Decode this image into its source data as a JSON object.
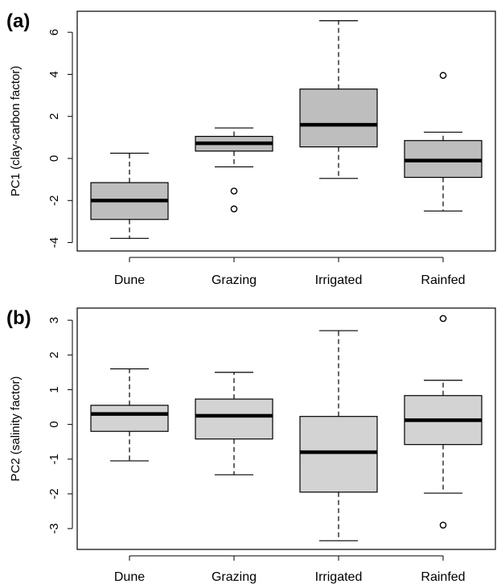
{
  "chart_data": [
    {
      "type": "box",
      "panel_label": "(a)",
      "title": "",
      "xlabel": "",
      "ylabel": "PC1 (clay-carbon factor)",
      "ylim": [
        -4.4,
        7.0
      ],
      "yticks": [
        -4,
        -2,
        0,
        2,
        4,
        6
      ],
      "categories": [
        "Dune",
        "Grazing",
        "Irrigated",
        "Rainfed"
      ],
      "box_color": "#bebebe",
      "boxes": [
        {
          "whisker_low": -3.8,
          "q1": -2.9,
          "median": -2.0,
          "q3": -1.15,
          "whisker_high": 0.25,
          "outliers": []
        },
        {
          "whisker_low": -0.4,
          "q1": 0.35,
          "median": 0.72,
          "q3": 1.05,
          "whisker_high": 1.45,
          "outliers": [
            -1.55,
            -2.4
          ]
        },
        {
          "whisker_low": -0.95,
          "q1": 0.55,
          "median": 1.6,
          "q3": 3.3,
          "whisker_high": 6.55,
          "outliers": []
        },
        {
          "whisker_low": -2.5,
          "q1": -0.9,
          "median": -0.1,
          "q3": 0.85,
          "whisker_high": 1.25,
          "outliers": [
            3.95
          ]
        }
      ]
    },
    {
      "type": "box",
      "panel_label": "(b)",
      "title": "",
      "xlabel": "",
      "ylabel": "PC2 (salinity factor)",
      "ylim": [
        -3.6,
        3.35
      ],
      "yticks": [
        -3,
        -2,
        -1,
        0,
        1,
        2,
        3
      ],
      "categories": [
        "Dune",
        "Grazing",
        "Irrigated",
        "Rainfed"
      ],
      "box_color": "#d3d3d3",
      "boxes": [
        {
          "whisker_low": -1.05,
          "q1": -0.2,
          "median": 0.3,
          "q3": 0.55,
          "whisker_high": 1.6,
          "outliers": []
        },
        {
          "whisker_low": -1.45,
          "q1": -0.42,
          "median": 0.25,
          "q3": 0.73,
          "whisker_high": 1.5,
          "outliers": []
        },
        {
          "whisker_low": -3.35,
          "q1": -1.95,
          "median": -0.8,
          "q3": 0.23,
          "whisker_high": 2.7,
          "outliers": []
        },
        {
          "whisker_low": -1.98,
          "q1": -0.58,
          "median": 0.12,
          "q3": 0.83,
          "whisker_high": 1.27,
          "outliers": [
            3.05,
            -2.9
          ]
        }
      ]
    }
  ]
}
